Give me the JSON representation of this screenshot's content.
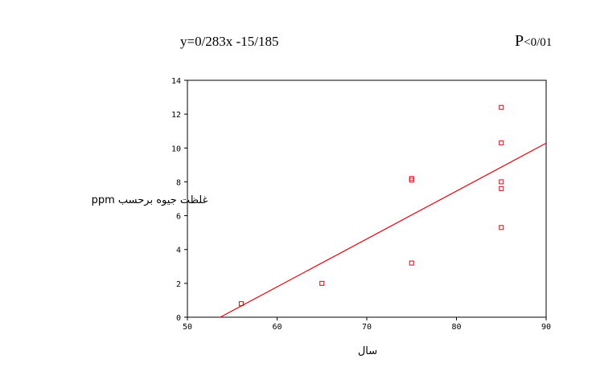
{
  "chart_data": {
    "type": "scatter",
    "equation": "y=0/283x -15/185",
    "pvalue": {
      "prefix": "P",
      "rest": "<0/01"
    },
    "xlabel": "سال",
    "ylabel": "غلظت جیوه برحسب ppm",
    "xlim": [
      50,
      90
    ],
    "ylim": [
      0,
      14
    ],
    "xticks": [
      50,
      60,
      70,
      80,
      90
    ],
    "yticks": [
      0,
      2,
      4,
      6,
      8,
      10,
      12,
      14
    ],
    "points": [
      {
        "x": 56,
        "y": 0.8
      },
      {
        "x": 65,
        "y": 2.0
      },
      {
        "x": 75,
        "y": 8.2
      },
      {
        "x": 75,
        "y": 8.1
      },
      {
        "x": 75,
        "y": 3.2
      },
      {
        "x": 85,
        "y": 12.4
      },
      {
        "x": 85,
        "y": 10.3
      },
      {
        "x": 85,
        "y": 8.0
      },
      {
        "x": 85,
        "y": 7.6
      },
      {
        "x": 85,
        "y": 5.3
      }
    ],
    "regression": {
      "slope": 0.283,
      "intercept": -15.185
    },
    "marker_color": "#e8000d",
    "line_color": "#e8000d",
    "grid": false,
    "legend": "none"
  }
}
